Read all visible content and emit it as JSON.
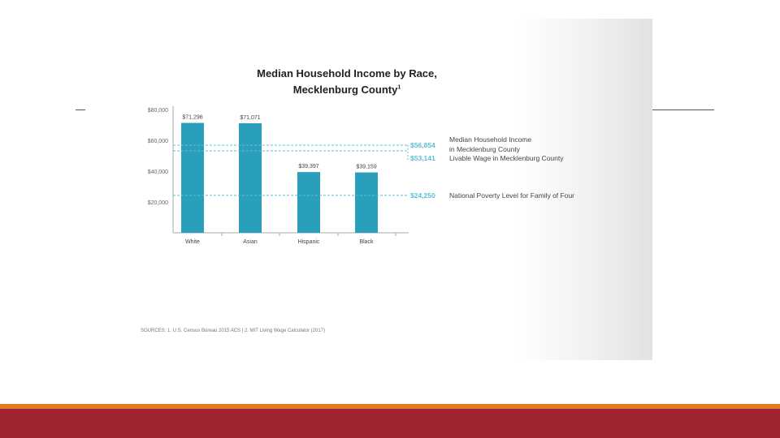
{
  "slide": {
    "title_line1": "Median Household Income by Race,",
    "title_line2": "Mecklenburg County",
    "title_superscript": "1",
    "sources": "SOURCES: 1. U.S. Census Bureau 2015 ACS | 2. MIT Living Wage Calculator (2017)",
    "colors": {
      "bar": "#2a9fbb",
      "reference": "#5cbfd6",
      "text": "#333333",
      "orange_strip": "#e47a22",
      "red_strip": "#9e2431"
    }
  },
  "chart_data": {
    "type": "bar",
    "categories": [
      "White",
      "Asian",
      "Hispanic",
      "Black"
    ],
    "values": [
      71296,
      71071,
      39397,
      39159
    ],
    "value_labels": [
      "$71,296",
      "$71,071",
      "$39,397",
      "$39,159"
    ],
    "title": "Median Household Income by Race, Mecklenburg County",
    "xlabel": "",
    "ylabel": "",
    "ylim": [
      0,
      80000
    ],
    "yticks": [
      20000,
      40000,
      60000,
      80000
    ],
    "ytick_labels": [
      "$20,000",
      "$40,000",
      "$60,000",
      "$80,000"
    ],
    "reference_lines": [
      {
        "value": 56854,
        "label": "$56,854",
        "description": "Median Household Income in Mecklenburg County"
      },
      {
        "value": 53141,
        "label": "$53,141",
        "description": "Livable Wage in Mecklenburg County"
      },
      {
        "value": 24250,
        "label": "$24,250",
        "description": "National Poverty Level for Family of Four"
      }
    ]
  }
}
